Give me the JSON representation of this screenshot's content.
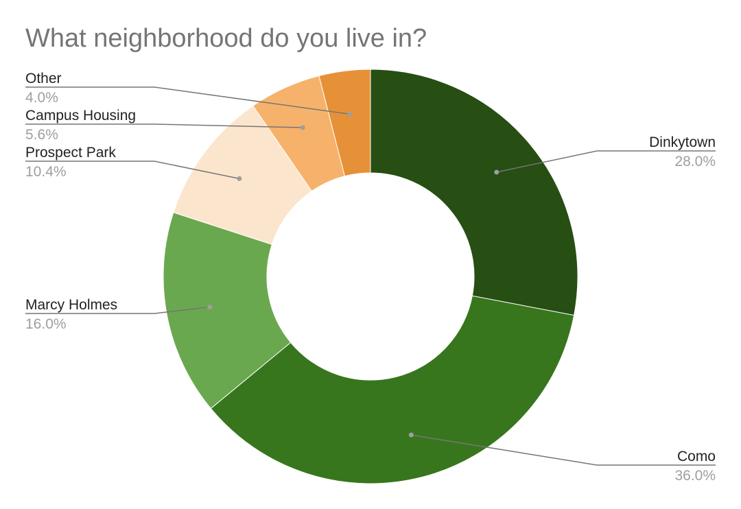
{
  "chart_data": {
    "type": "pie",
    "donut": true,
    "title": "What neighborhood do you live in?",
    "slices": [
      {
        "label": "Dinkytown",
        "value": 28.0,
        "value_label": "28.0%",
        "color": "#274e13"
      },
      {
        "label": "Como",
        "value": 36.0,
        "value_label": "36.0%",
        "color": "#38761d"
      },
      {
        "label": "Marcy Holmes",
        "value": 16.0,
        "value_label": "16.0%",
        "color": "#6aa84f"
      },
      {
        "label": "Prospect Park",
        "value": 10.4,
        "value_label": "10.4%",
        "color": "#fce5cd"
      },
      {
        "label": "Campus Housing",
        "value": 5.6,
        "value_label": "5.6%",
        "color": "#f6b26b"
      },
      {
        "label": "Other",
        "value": 4.0,
        "value_label": "4.0%",
        "color": "#e69138"
      }
    ],
    "legend": "none"
  }
}
